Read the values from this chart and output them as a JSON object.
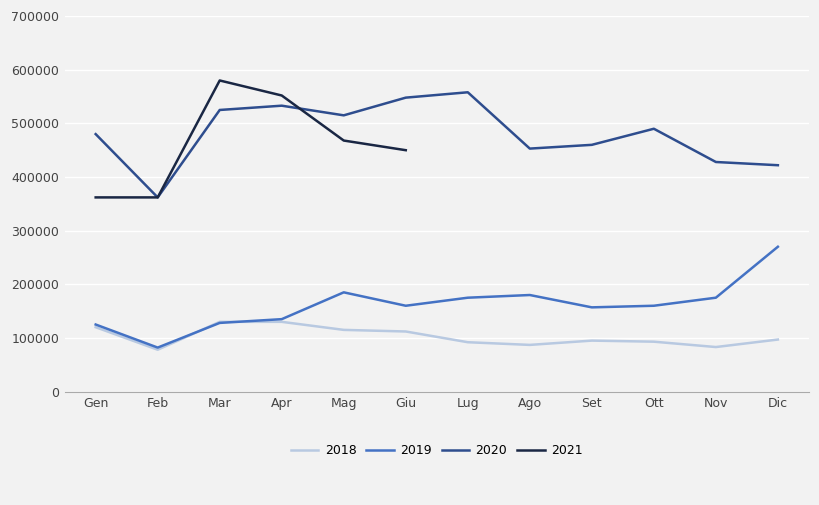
{
  "months": [
    "Gen",
    "Feb",
    "Mar",
    "Apr",
    "Mag",
    "Giu",
    "Lug",
    "Ago",
    "Set",
    "Ott",
    "Nov",
    "Dic"
  ],
  "series": {
    "2018": [
      120000,
      78000,
      130000,
      130000,
      115000,
      112000,
      92000,
      87000,
      95000,
      93000,
      83000,
      97000
    ],
    "2019": [
      125000,
      82000,
      128000,
      135000,
      185000,
      160000,
      175000,
      180000,
      157000,
      160000,
      175000,
      270000
    ],
    "2020": [
      480000,
      362000,
      525000,
      533000,
      515000,
      548000,
      558000,
      453000,
      460000,
      490000,
      428000,
      422000
    ],
    "2021": [
      362000,
      362000,
      580000,
      552000,
      468000,
      450000,
      null,
      null,
      null,
      null,
      null,
      null
    ]
  },
  "colors": {
    "2018": "#b8c9e1",
    "2019": "#4472c4",
    "2020": "#2e4d8e",
    "2021": "#1a2744"
  },
  "ylim": [
    0,
    700000
  ],
  "yticks": [
    0,
    100000,
    200000,
    300000,
    400000,
    500000,
    600000,
    700000
  ],
  "background_color": "#f2f2f2",
  "grid_color": "#ffffff",
  "legend_labels": [
    "2018",
    "2019",
    "2020",
    "2021"
  ]
}
